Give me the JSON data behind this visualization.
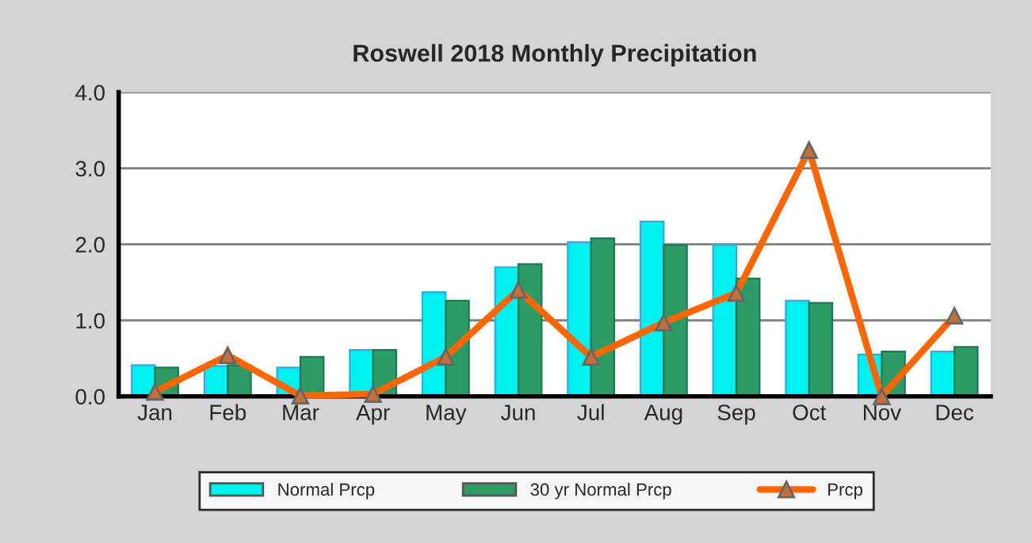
{
  "chart_data": {
    "type": "bar",
    "title": "Roswell 2018 Monthly Precipitation",
    "categories": [
      "Jan",
      "Feb",
      "Mar",
      "Apr",
      "May",
      "Jun",
      "Jul",
      "Aug",
      "Sep",
      "Oct",
      "Nov",
      "Dec"
    ],
    "series": [
      {
        "name": "Normal Prcp",
        "color": "#00f0f0",
        "values": [
          0.41,
          0.4,
          0.38,
          0.61,
          1.37,
          1.7,
          2.03,
          2.3,
          1.99,
          1.26,
          0.55,
          0.59
        ]
      },
      {
        "name": "30 yr Normal Prcp",
        "color": "#2e9a66",
        "values": [
          0.38,
          0.41,
          0.52,
          0.61,
          1.26,
          1.74,
          2.08,
          1.99,
          1.55,
          1.23,
          0.59,
          0.65
        ]
      },
      {
        "name": "Prcp",
        "type": "line",
        "color": "#ff6600",
        "marker": "triangle",
        "values": [
          0.06,
          0.54,
          0.01,
          0.03,
          0.52,
          1.4,
          0.52,
          0.97,
          1.36,
          3.24,
          0.0,
          1.06
        ]
      }
    ],
    "ylim": [
      0,
      4
    ],
    "yticks": [
      {
        "value": 0,
        "label": "0.0"
      },
      {
        "value": 1,
        "label": "1.0"
      },
      {
        "value": 2,
        "label": "2.0"
      },
      {
        "value": 3,
        "label": "3.0"
      },
      {
        "value": 4,
        "label": "4.0"
      }
    ],
    "grid": "y",
    "legend": "bottom"
  }
}
